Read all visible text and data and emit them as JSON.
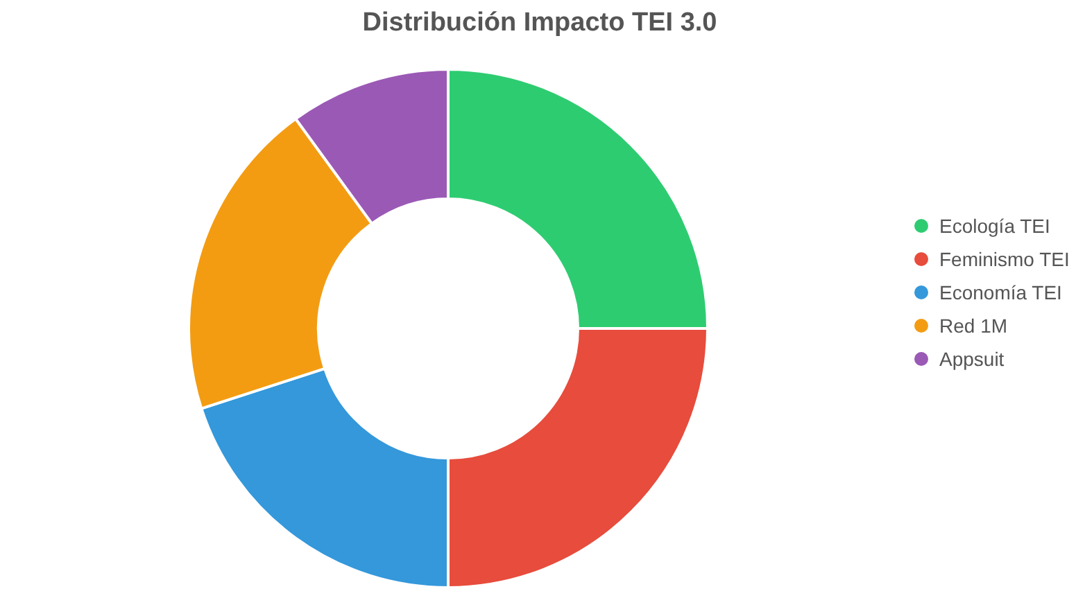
{
  "chart_data": {
    "type": "donut",
    "title": "Distribución Impacto TEI 3.0",
    "categories": [
      "Ecología TEI",
      "Feminismo TEI",
      "Economía TEI",
      "Red 1M",
      "Appsuit"
    ],
    "values": [
      25,
      25,
      20,
      20,
      10
    ],
    "colors": [
      "#2ecc71",
      "#e74c3c",
      "#3498db",
      "#f39c12",
      "#9b59b6"
    ],
    "legend": "right"
  }
}
